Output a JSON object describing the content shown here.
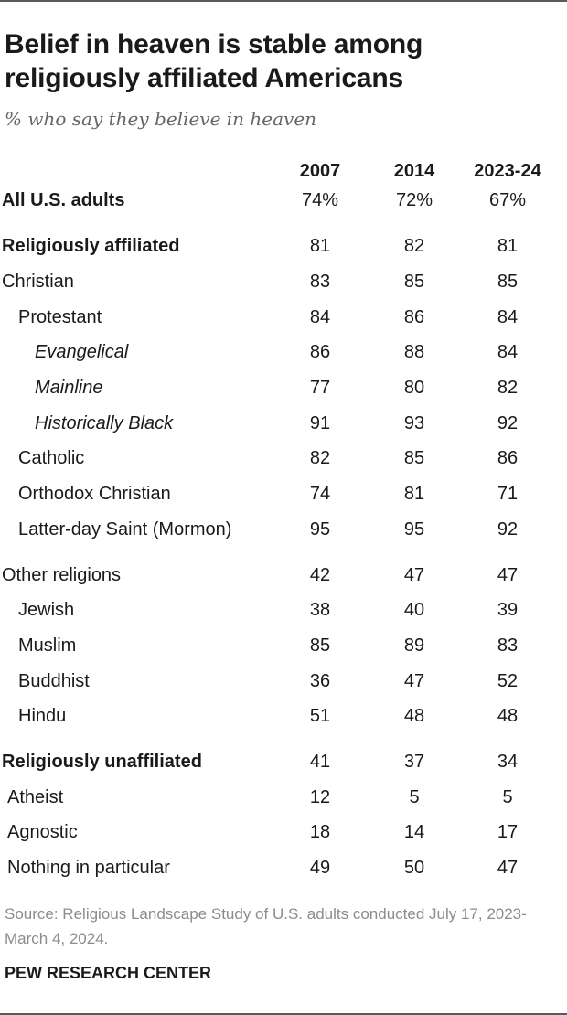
{
  "title": "Belief in heaven is stable among religiously affiliated Americans",
  "subtitle": "% who say they believe in heaven",
  "columns": [
    "2007",
    "2014",
    "2023-24"
  ],
  "source": "Source: Religious Landscape Study of U.S. adults conducted July 17, 2023-March 4, 2024.",
  "credit": "PEW RESEARCH CENTER",
  "chart_data": {
    "type": "table",
    "title": "Belief in heaven is stable among religiously affiliated Americans",
    "subtitle": "% who say they believe in heaven",
    "columns": [
      "2007",
      "2014",
      "2023-24"
    ],
    "rows": [
      {
        "label": "All U.S. adults",
        "style": "bold",
        "values": [
          "74%",
          "72%",
          "67%"
        ]
      },
      {
        "label": "Religiously affiliated",
        "style": "bold",
        "values": [
          "81",
          "82",
          "81"
        ]
      },
      {
        "label": "Christian",
        "style": "l0",
        "values": [
          "83",
          "85",
          "85"
        ]
      },
      {
        "label": "Protestant",
        "style": "l1",
        "values": [
          "84",
          "86",
          "84"
        ]
      },
      {
        "label": "Evangelical",
        "style": "l2",
        "values": [
          "86",
          "88",
          "84"
        ]
      },
      {
        "label": "Mainline",
        "style": "l2",
        "values": [
          "77",
          "80",
          "82"
        ]
      },
      {
        "label": "Historically Black",
        "style": "l2",
        "values": [
          "91",
          "93",
          "92"
        ]
      },
      {
        "label": "Catholic",
        "style": "l1",
        "values": [
          "82",
          "85",
          "86"
        ]
      },
      {
        "label": "Orthodox Christian",
        "style": "l1",
        "values": [
          "74",
          "81",
          "71"
        ]
      },
      {
        "label": "Latter-day Saint (Mormon)",
        "style": "l1",
        "values": [
          "95",
          "95",
          "92"
        ]
      },
      {
        "label": "Other religions",
        "style": "l0",
        "values": [
          "42",
          "47",
          "47"
        ]
      },
      {
        "label": "Jewish",
        "style": "l1",
        "values": [
          "38",
          "40",
          "39"
        ]
      },
      {
        "label": "Muslim",
        "style": "l1",
        "values": [
          "85",
          "89",
          "83"
        ]
      },
      {
        "label": "Buddhist",
        "style": "l1",
        "values": [
          "36",
          "47",
          "52"
        ]
      },
      {
        "label": "Hindu",
        "style": "l1",
        "values": [
          "51",
          "48",
          "48"
        ]
      },
      {
        "label": "Religiously unaffiliated",
        "style": "bold",
        "values": [
          "41",
          "37",
          "34"
        ]
      },
      {
        "label": "Atheist",
        "style": "l1b",
        "values": [
          "12",
          "5",
          "5"
        ]
      },
      {
        "label": "Agnostic",
        "style": "l1b",
        "values": [
          "18",
          "14",
          "17"
        ]
      },
      {
        "label": "Nothing in particular",
        "style": "l1b",
        "values": [
          "49",
          "50",
          "47"
        ]
      }
    ]
  }
}
